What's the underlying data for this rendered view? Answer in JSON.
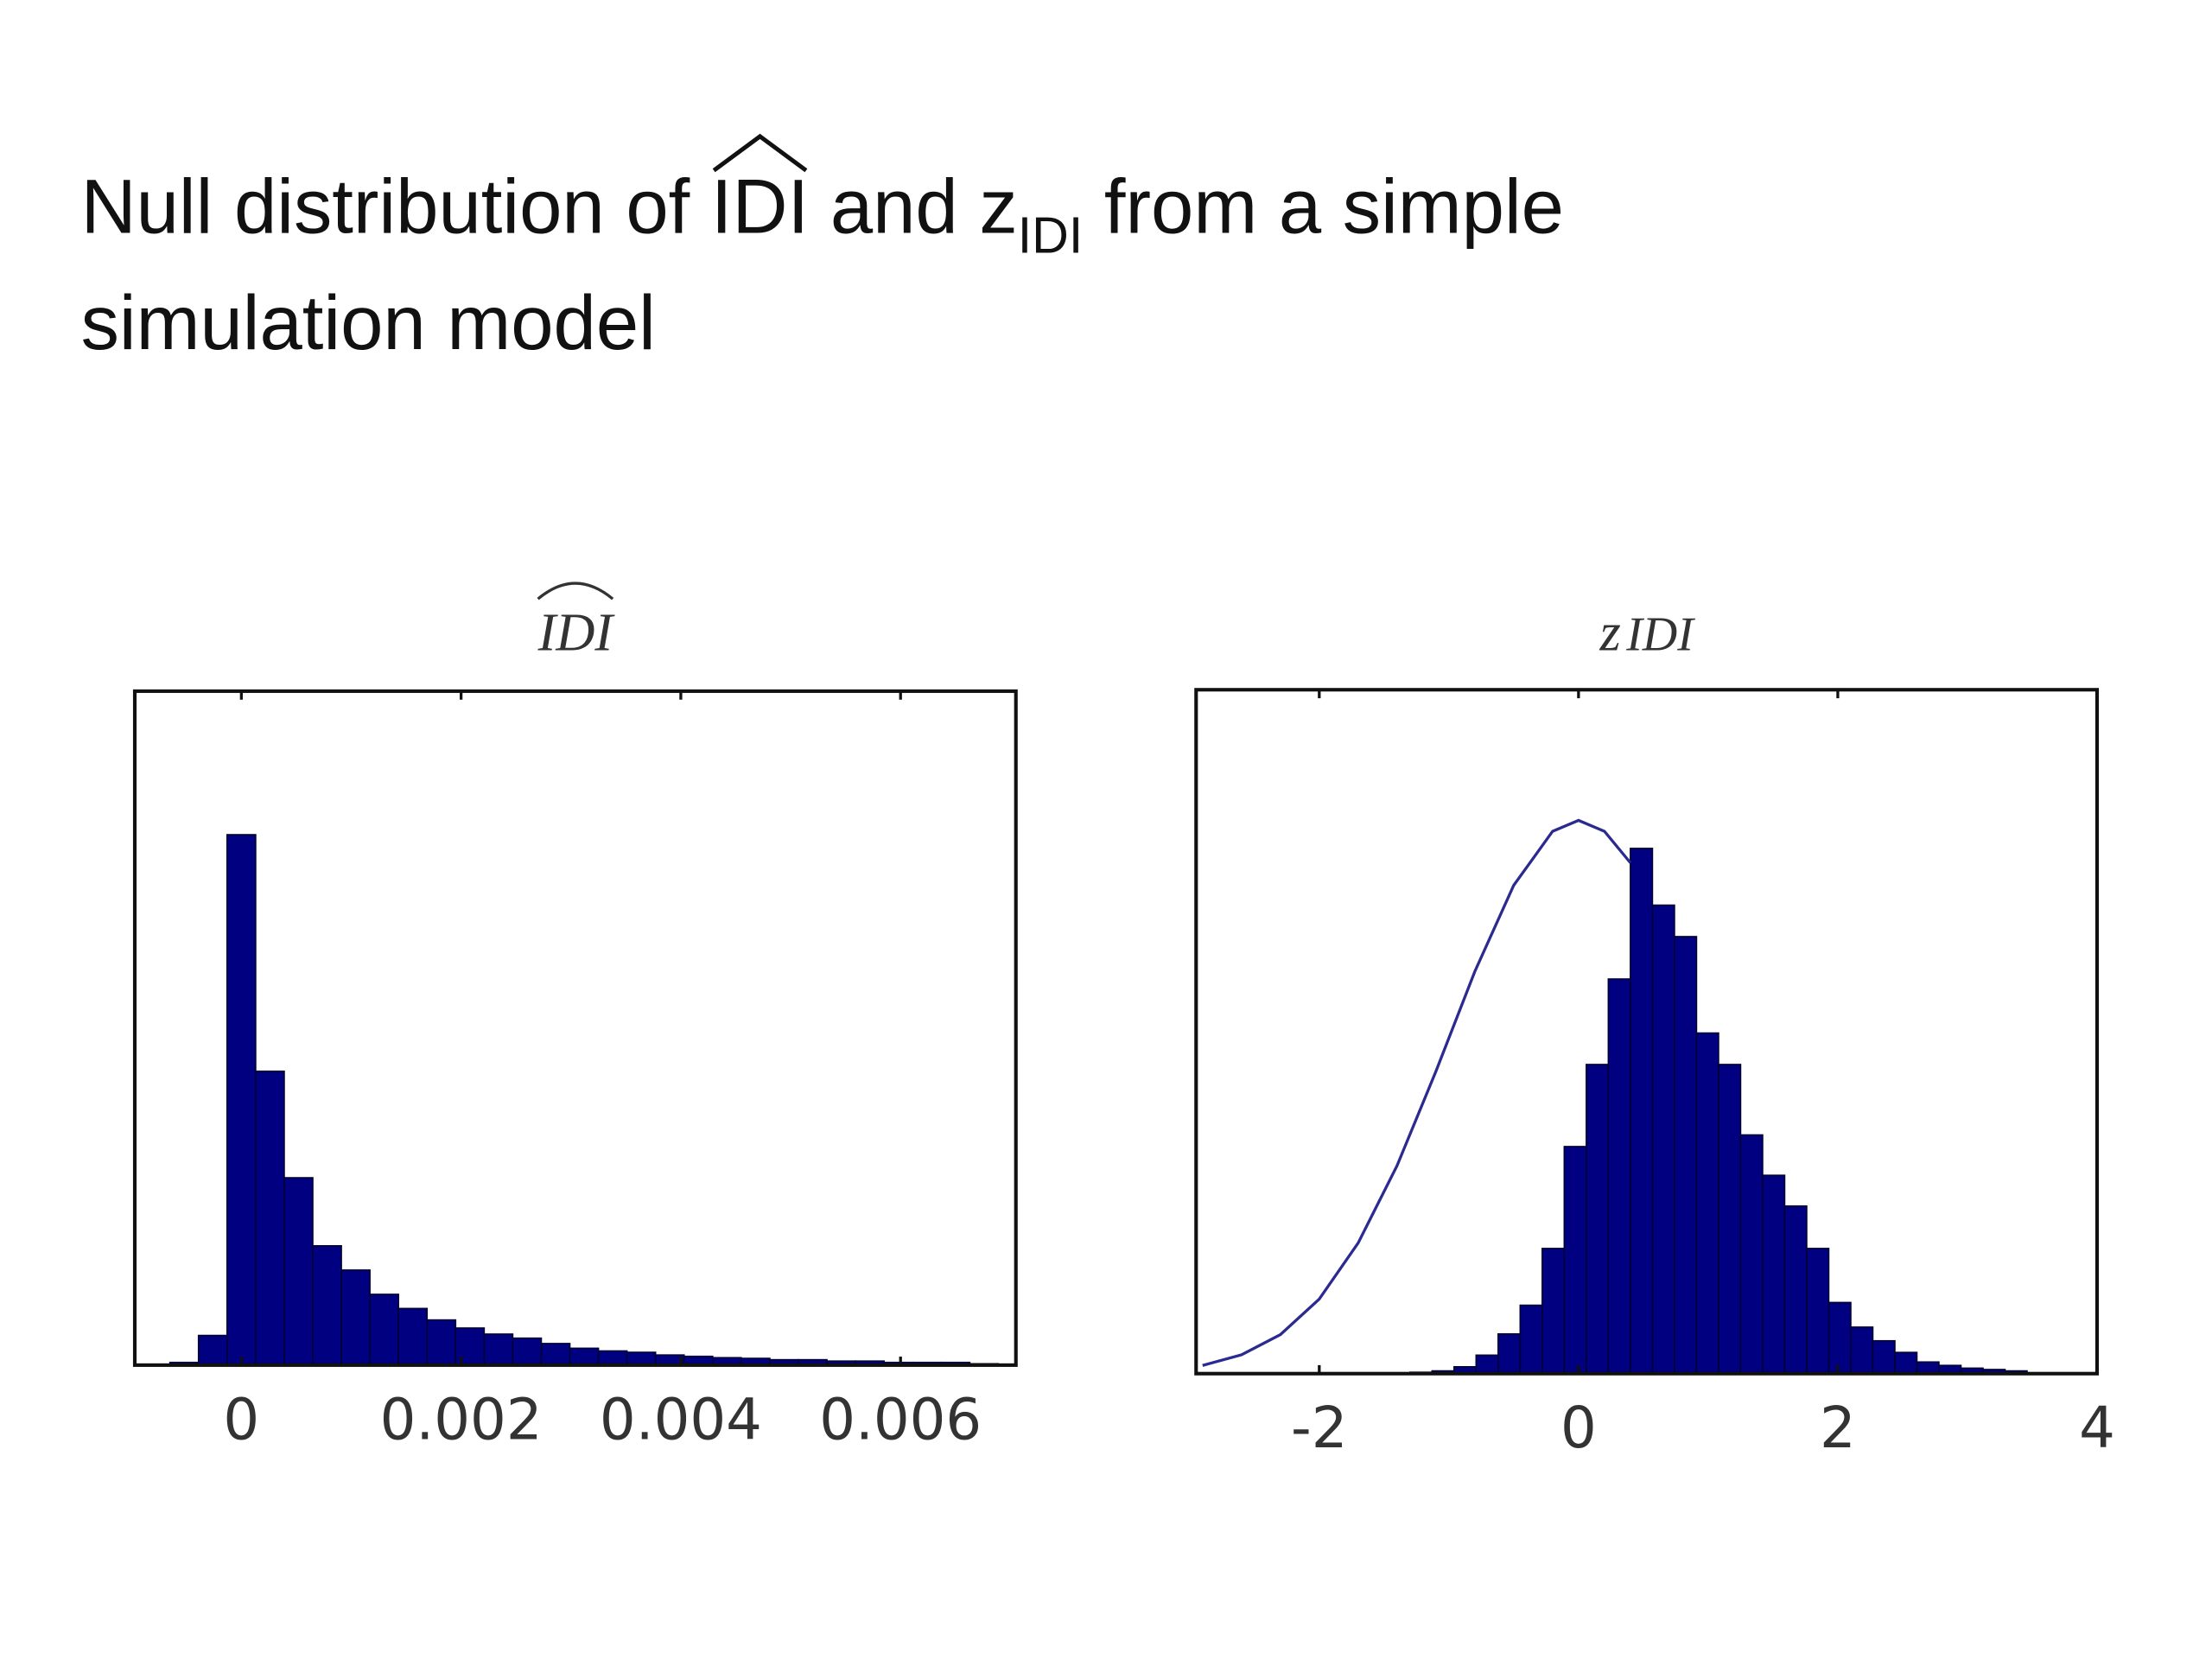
{
  "title": {
    "before": "Null distribution of ",
    "hat": "IDI",
    "middle": " and z",
    "sub": "IDI",
    "after": " from a simple",
    "line2": "simulation model"
  },
  "chart_data": [
    {
      "type": "histogram",
      "title": "IDI",
      "bins": [
        -0.00065,
        -0.00039,
        -0.00013,
        0.00013,
        0.00039,
        0.00065,
        0.00091,
        0.00117,
        0.00143,
        0.00169,
        0.00195,
        0.00221,
        0.00247,
        0.00273,
        0.00299,
        0.00325,
        0.00351,
        0.00377,
        0.00403,
        0.00429,
        0.00455,
        0.00481,
        0.00507,
        0.00533,
        0.00559,
        0.00585,
        0.00611,
        0.00637,
        0.00663,
        0.00689
      ],
      "values": [
        0.4,
        4.4,
        78.7,
        43.6,
        27.8,
        17.7,
        14.1,
        10.5,
        8.4,
        6.7,
        5.5,
        4.6,
        4.0,
        3.2,
        2.5,
        2.1,
        1.9,
        1.5,
        1.3,
        1.1,
        1.0,
        0.8,
        0.8,
        0.6,
        0.6,
        0.4,
        0.4,
        0.4,
        0.2
      ],
      "color": "#000080",
      "xlim": [
        -0.00097,
        0.00705
      ],
      "xticks": [
        0,
        0.002,
        0.004,
        0.006
      ],
      "ylim": [
        0,
        100
      ]
    },
    {
      "type": "histogram",
      "title": "z",
      "title_sub": "IDI",
      "bins": [
        -1.3,
        -1.13,
        -0.96,
        -0.79,
        -0.62,
        -0.45,
        -0.28,
        -0.11,
        0.06,
        0.23,
        0.4,
        0.57,
        0.74,
        0.91,
        1.08,
        1.25,
        1.42,
        1.59,
        1.76,
        1.93,
        2.1,
        2.27,
        2.44,
        2.61,
        2.78,
        2.95,
        3.12,
        3.29,
        3.46
      ],
      "values": [
        0.2,
        0.4,
        1.0,
        2.7,
        5.8,
        10.0,
        18.3,
        33.2,
        45.2,
        57.7,
        76.8,
        68.5,
        63.9,
        49.8,
        45.2,
        34.9,
        29.0,
        24.5,
        18.3,
        10.4,
        6.8,
        4.8,
        3.1,
        1.7,
        1.2,
        0.8,
        0.6,
        0.4
      ],
      "color": "#000080",
      "line": {
        "x": [
          -2.9,
          -2.6,
          -2.3,
          -2.0,
          -1.7,
          -1.4,
          -1.1,
          -0.8,
          -0.5,
          -0.2,
          0,
          0.2,
          0.4
        ],
        "values": [
          1.2,
          2.75,
          5.7,
          10.9,
          19.1,
          30.4,
          44.2,
          58.8,
          71.4,
          79.3,
          80.9,
          79.3,
          74.7
        ],
        "color": "#2a2a90"
      },
      "xlim": [
        -2.95,
        4
      ],
      "xticks": [
        -2,
        0,
        2,
        4
      ],
      "ylim": [
        0,
        100
      ]
    }
  ]
}
